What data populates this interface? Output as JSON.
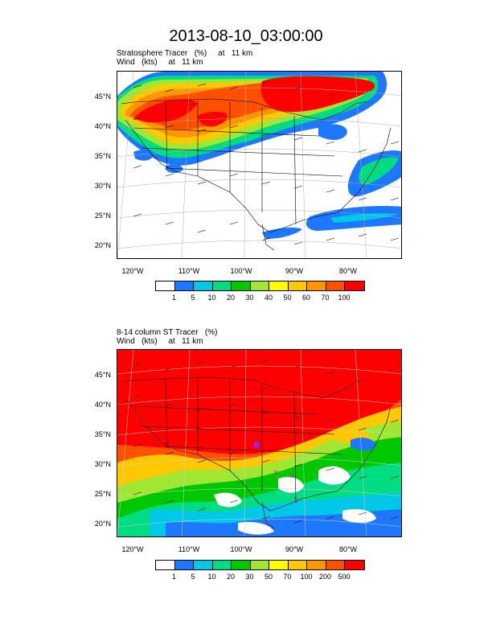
{
  "title": "2013-08-10_03:00:00",
  "panel1": {
    "label_line1": "Stratosphere Tracer   (%)     at   11 km",
    "label_line2": "Wind   (kts)     at   11 km",
    "colorbar_labels": [
      "1",
      "5",
      "10",
      "20",
      "30",
      "40",
      "50",
      "60",
      "70",
      "100"
    ]
  },
  "panel2": {
    "label_line1": "8-14 column ST Tracer   (%)",
    "label_line2": "Wind   (kts)     at   11 km",
    "colorbar_labels": [
      "1",
      "5",
      "10",
      "20",
      "30",
      "50",
      "70",
      "100",
      "200",
      "500"
    ]
  },
  "lat_labels": [
    "45°N",
    "40°N",
    "35°N",
    "30°N",
    "25°N",
    "20°N"
  ],
  "lon_labels": [
    "120°W",
    "110°W",
    "100°W",
    "90°W",
    "80°W"
  ],
  "colorbar_colors": [
    "#ffffff",
    "#1e78ff",
    "#00c8e6",
    "#00dc82",
    "#00c800",
    "#a0e632",
    "#ffff00",
    "#ffc800",
    "#ff9600",
    "#ff5000",
    "#ff0000"
  ]
}
